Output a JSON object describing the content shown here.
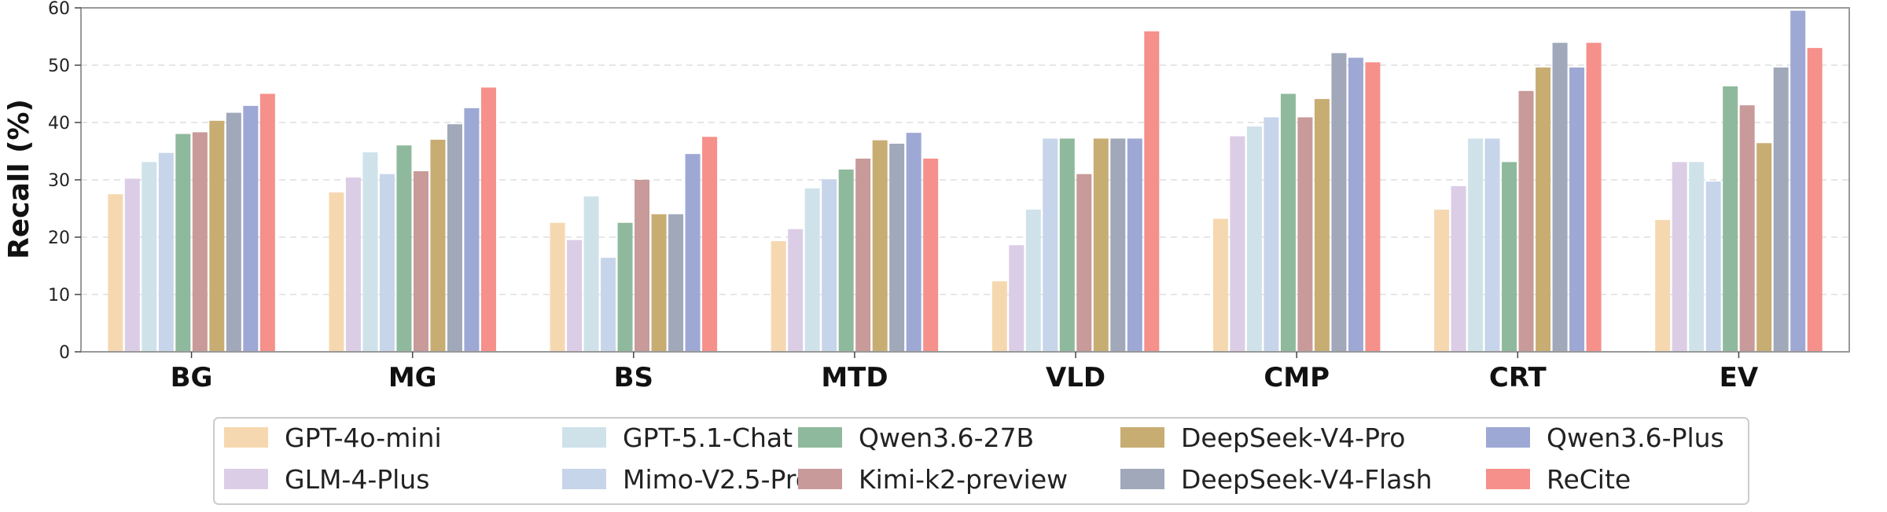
{
  "chart_data": {
    "type": "bar",
    "title": "",
    "xlabel": "",
    "ylabel": "Recall (%)",
    "ylim": [
      0,
      60
    ],
    "yticks": [
      0,
      10,
      20,
      30,
      40,
      50,
      60
    ],
    "grid": "horizontal-dashed",
    "legend_placement": "bottom-center",
    "categories": [
      "BG",
      "MG",
      "BS",
      "MTD",
      "VLD",
      "CMP",
      "CRT",
      "EV"
    ],
    "series": [
      {
        "name": "GPT-4o-mini",
        "color": "#f6d8b0",
        "values": [
          27.5,
          27.8,
          22.5,
          19.3,
          12.3,
          23.2,
          24.8,
          23.0
        ]
      },
      {
        "name": "GLM-4-Plus",
        "color": "#dccde6",
        "values": [
          30.2,
          30.4,
          19.5,
          21.4,
          18.6,
          37.6,
          28.9,
          33.1
        ]
      },
      {
        "name": "GPT-5.1-Chat",
        "color": "#cfe2ea",
        "values": [
          33.1,
          34.8,
          27.1,
          28.5,
          24.8,
          39.3,
          37.2,
          33.1
        ]
      },
      {
        "name": "Mimo-V2.5-Pro",
        "color": "#c7d5ea",
        "values": [
          34.7,
          31.0,
          16.4,
          30.1,
          37.2,
          40.9,
          37.2,
          29.7
        ]
      },
      {
        "name": "Qwen3.6-27B",
        "color": "#8fb99c",
        "values": [
          38.0,
          36.0,
          22.5,
          31.8,
          37.2,
          45.0,
          33.1,
          46.3
        ]
      },
      {
        "name": "Kimi-k2-preview",
        "color": "#c89a9a",
        "values": [
          38.3,
          31.5,
          30.0,
          33.7,
          31.0,
          40.9,
          45.5,
          43.0
        ]
      },
      {
        "name": "DeepSeek-V4-Pro",
        "color": "#c8ad73",
        "values": [
          40.3,
          37.0,
          24.0,
          36.9,
          37.2,
          44.1,
          49.6,
          36.4
        ]
      },
      {
        "name": "DeepSeek-V4-Flash",
        "color": "#a0a8ba",
        "values": [
          41.7,
          39.7,
          24.0,
          36.3,
          37.2,
          52.1,
          53.9,
          49.6
        ]
      },
      {
        "name": "Qwen3.6-Plus",
        "color": "#9ea8d4",
        "values": [
          42.9,
          42.5,
          34.5,
          38.2,
          37.2,
          51.3,
          49.6,
          59.5
        ]
      },
      {
        "name": "ReCite",
        "color": "#f5908a",
        "values": [
          45.0,
          46.1,
          37.5,
          33.7,
          55.9,
          50.5,
          53.9,
          53.0
        ]
      }
    ]
  }
}
